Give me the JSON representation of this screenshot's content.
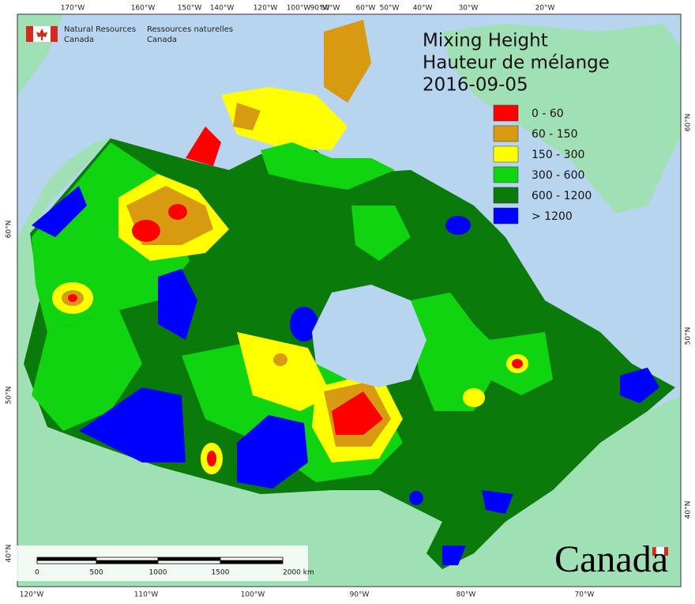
{
  "header": {
    "org_en": [
      "Natural Resources",
      "Canada"
    ],
    "org_fr": [
      "Ressources naturelles",
      "Canada"
    ]
  },
  "title": [
    "Mixing Height",
    "Hauteur de mélange",
    "2016-09-05"
  ],
  "legend": [
    {
      "label": "0 - 60",
      "color": "#ff0000"
    },
    {
      "label": "60 - 150",
      "color": "#d89a10"
    },
    {
      "label": "150 - 300",
      "color": "#ffff00"
    },
    {
      "label": "300 - 600",
      "color": "#11d411"
    },
    {
      "label": "600 - 1200",
      "color": "#0a7a0a"
    },
    {
      "label": "> 1200",
      "color": "#0000ff"
    }
  ],
  "graticule": {
    "top": [
      "170°W",
      "160°W",
      "150°W",
      "140°W",
      "120°W",
      "100°W",
      "90°W",
      "80°W",
      "60°W",
      "50°W",
      "40°W",
      "30°W",
      "20°W"
    ],
    "bottom": [
      "120°W",
      "110°W",
      "100°W",
      "90°W",
      "80°W",
      "70°W"
    ],
    "left": [
      "60°N",
      "50°N",
      "40°N"
    ],
    "right": [
      "60°N",
      "50°N",
      "40°N"
    ]
  },
  "scale_bar": [
    "0",
    "500",
    "1000",
    "1500",
    "2000 km"
  ],
  "wordmark": "Canada"
}
